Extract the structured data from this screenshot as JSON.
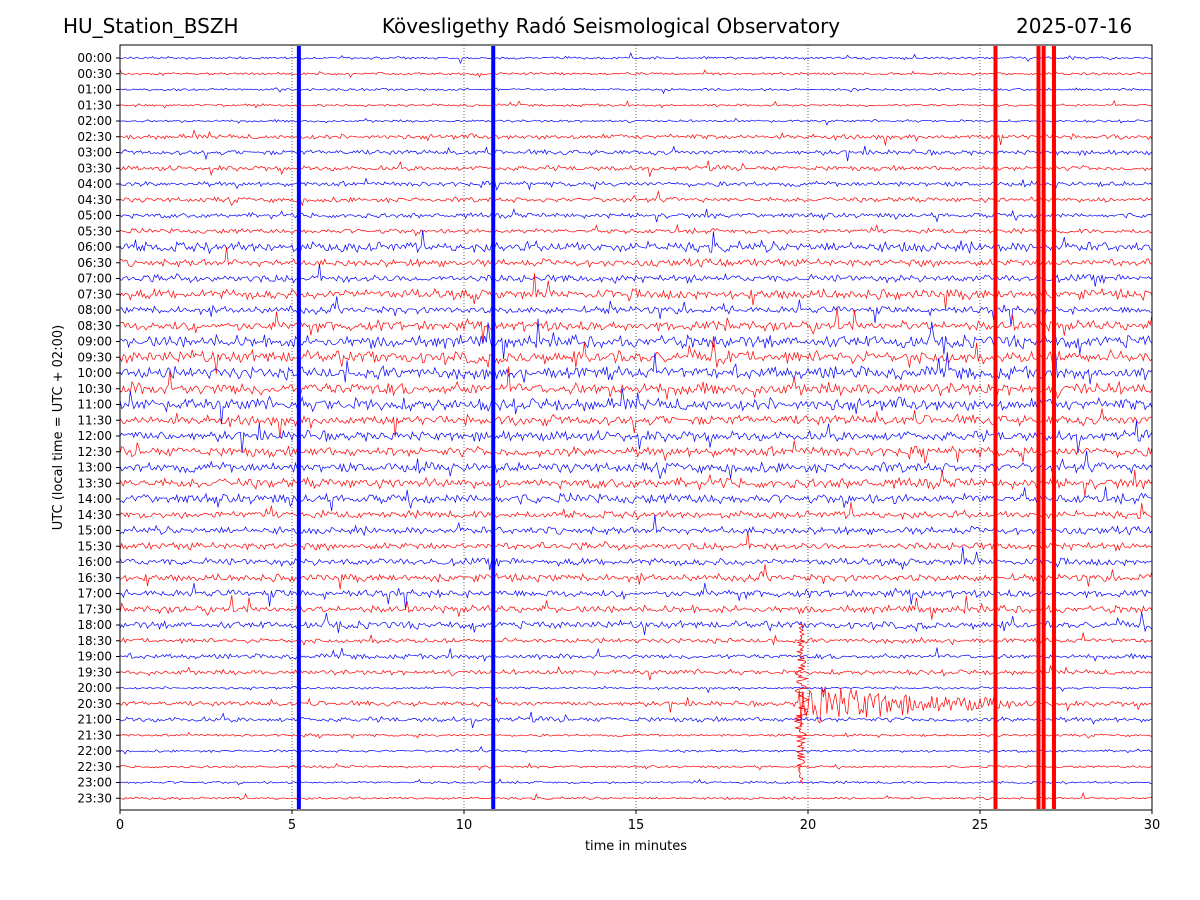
{
  "header": {
    "station": "HU_Station_BSZH",
    "title": "Kövesligethy Radó Seismological Observatory",
    "date": "2025-07-16"
  },
  "chart_data": {
    "type": "line",
    "title": "Kövesligethy Radó Seismological Observatory",
    "xlabel": "time in minutes",
    "ylabel": "UTC (local time = UTC + 02:00)",
    "xlim": [
      0,
      30
    ],
    "xticks": [
      "0",
      "5",
      "10",
      "15",
      "20",
      "25",
      "30"
    ],
    "rows": [
      "00:00",
      "00:30",
      "01:00",
      "01:30",
      "02:00",
      "02:30",
      "03:00",
      "03:30",
      "04:00",
      "04:30",
      "05:00",
      "05:30",
      "06:00",
      "06:30",
      "07:00",
      "07:30",
      "08:00",
      "08:30",
      "09:00",
      "09:30",
      "10:00",
      "10:30",
      "11:00",
      "11:30",
      "12:00",
      "12:30",
      "13:00",
      "13:30",
      "14:00",
      "14:30",
      "15:00",
      "15:30",
      "16:00",
      "16:30",
      "17:00",
      "17:30",
      "18:00",
      "18:30",
      "19:00",
      "19:30",
      "20:00",
      "20:30",
      "21:00",
      "21:30",
      "22:00",
      "22:30",
      "23:00",
      "23:30"
    ],
    "row_colors": [
      "#0000ff",
      "#ff0000"
    ],
    "row_amplitude": [
      1,
      1,
      1,
      1,
      1,
      2,
      2,
      2,
      2,
      2,
      2,
      2,
      4,
      3,
      3,
      4,
      3,
      4,
      5,
      5,
      5,
      5,
      5,
      4,
      4,
      4,
      4,
      4,
      4,
      3,
      3,
      3,
      3,
      3,
      3,
      3,
      3,
      2,
      2,
      2,
      1,
      2,
      2,
      1,
      1,
      1,
      1,
      1
    ],
    "events": [
      {
        "label": "vertical-spike-1",
        "minute": 5.2,
        "color": "#0000ff"
      },
      {
        "label": "vertical-spike-2",
        "minute": 10.85,
        "color": "#0000ff"
      },
      {
        "label": "vertical-spike-3",
        "minute": 25.45,
        "color": "#ff0000"
      },
      {
        "label": "vertical-spike-4",
        "minute": 26.7,
        "color": "#ff0000"
      },
      {
        "label": "vertical-spike-5",
        "minute": 26.85,
        "color": "#ff0000"
      },
      {
        "label": "vertical-spike-6",
        "minute": 27.15,
        "color": "#ff0000"
      }
    ],
    "earthquake": {
      "start_row": "20:30",
      "start_minute": 19.7,
      "end_minute": 26.0
    },
    "grid": "vertical dotted",
    "legend": "none"
  }
}
